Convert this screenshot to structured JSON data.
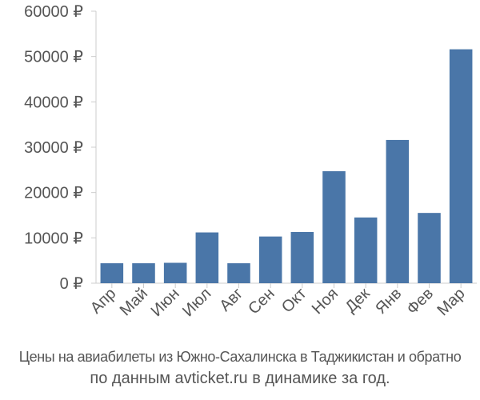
{
  "chart_data": {
    "type": "bar",
    "categories": [
      "Апр",
      "Май",
      "Июн",
      "Июл",
      "Авг",
      "Сен",
      "Окт",
      "Ноя",
      "Дек",
      "Янв",
      "Фев",
      "Мар"
    ],
    "values": [
      4400,
      4400,
      4500,
      11200,
      4400,
      10300,
      11300,
      24700,
      14500,
      31600,
      15500,
      51600
    ],
    "ylim": [
      0,
      60000
    ],
    "yticks": [
      0,
      10000,
      20000,
      30000,
      40000,
      50000,
      60000
    ],
    "ytick_labels": [
      "0 ₽",
      "10000 ₽",
      "20000 ₽",
      "30000 ₽",
      "40000 ₽",
      "50000 ₽",
      "60000 ₽"
    ],
    "grid": false,
    "bar_color": "#4a76a8"
  },
  "caption": {
    "line1": "Цены на авиабилеты из Южно-Сахалинска в Таджикистан и обратно",
    "line2": "по данным avticket.ru в динамике за год."
  }
}
